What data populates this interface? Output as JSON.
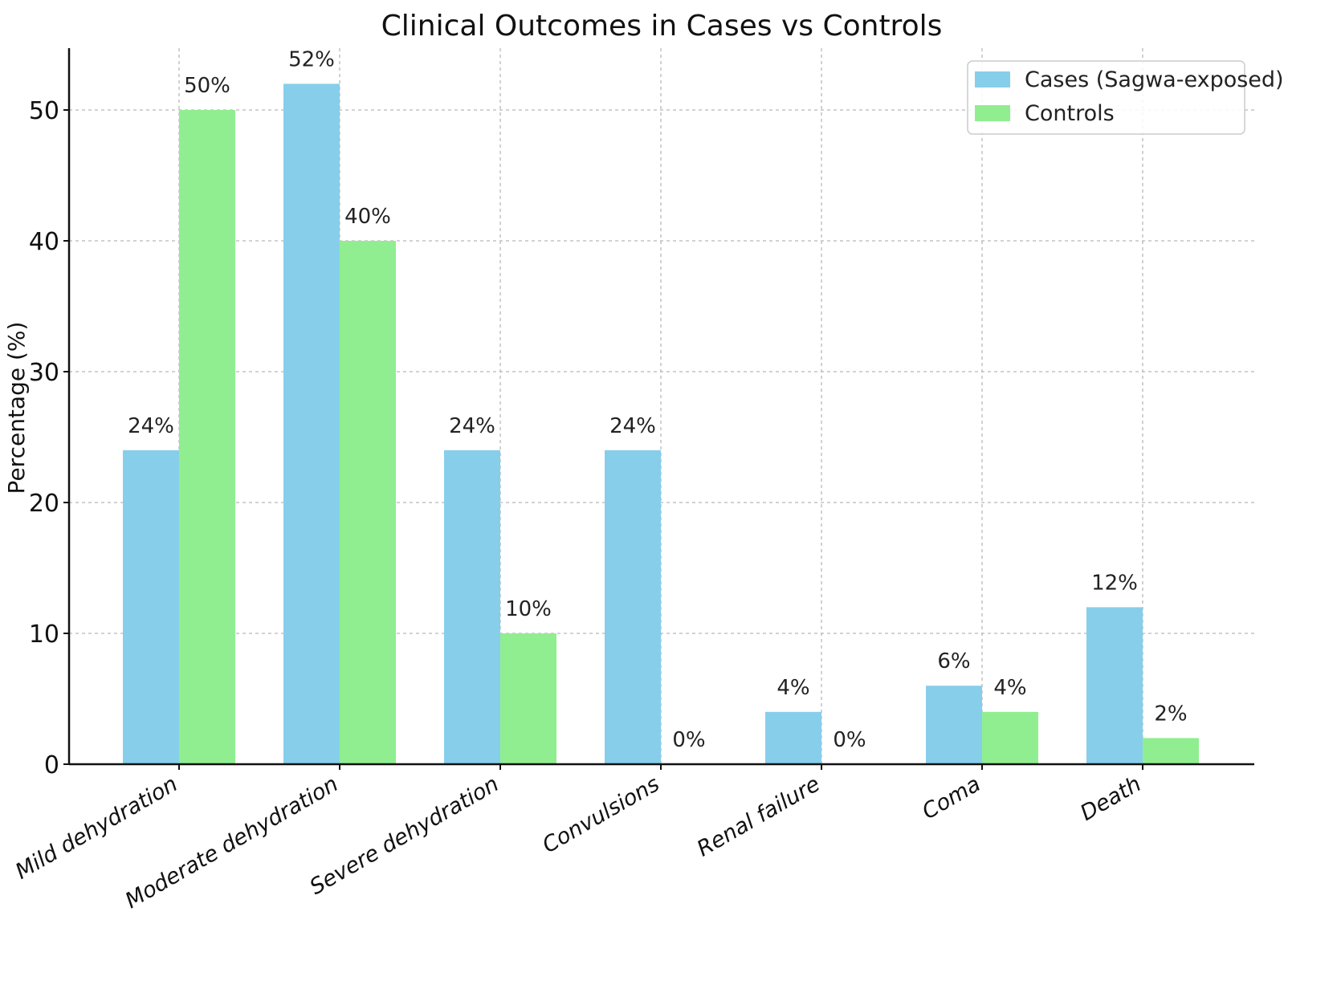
{
  "chart_data": {
    "type": "bar",
    "title": "Clinical Outcomes in Cases vs Controls",
    "xlabel": "",
    "ylabel": "Percentage (%)",
    "ylim": [
      0,
      54.5
    ],
    "yticks": [
      0,
      10,
      20,
      30,
      40,
      50
    ],
    "grid": true,
    "legend_position": "top-right",
    "categories": [
      "Mild dehydration",
      "Moderate dehydration",
      "Severe dehydration",
      "Convulsions",
      "Renal failure",
      "Coma",
      "Death"
    ],
    "series": [
      {
        "name": "Cases (Sagwa-exposed)",
        "color": "#87CEEB",
        "values": [
          24,
          52,
          24,
          24,
          4,
          6,
          12
        ],
        "labels": [
          "24%",
          "52%",
          "24%",
          "24%",
          "4%",
          "6%",
          "12%"
        ]
      },
      {
        "name": "Controls",
        "color": "#90EE90",
        "values": [
          50,
          40,
          10,
          0,
          0,
          4,
          2
        ],
        "labels": [
          "50%",
          "40%",
          "10%",
          "0%",
          "0%",
          "4%",
          "2%"
        ]
      }
    ]
  }
}
